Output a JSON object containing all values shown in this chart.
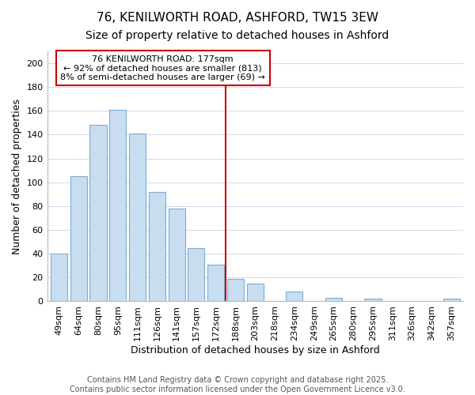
{
  "title": "76, KENILWORTH ROAD, ASHFORD, TW15 3EW",
  "subtitle": "Size of property relative to detached houses in Ashford",
  "xlabel": "Distribution of detached houses by size in Ashford",
  "ylabel": "Number of detached properties",
  "bar_labels": [
    "49sqm",
    "64sqm",
    "80sqm",
    "95sqm",
    "111sqm",
    "126sqm",
    "141sqm",
    "157sqm",
    "172sqm",
    "188sqm",
    "203sqm",
    "218sqm",
    "234sqm",
    "249sqm",
    "265sqm",
    "280sqm",
    "295sqm",
    "311sqm",
    "326sqm",
    "342sqm",
    "357sqm"
  ],
  "bar_values": [
    40,
    105,
    148,
    161,
    141,
    92,
    78,
    45,
    31,
    19,
    15,
    0,
    8,
    0,
    3,
    0,
    2,
    0,
    0,
    0,
    2
  ],
  "bar_color": "#c9ddf0",
  "bar_edge_color": "#7aaed6",
  "vline_x_index": 8,
  "vline_color": "#cc0000",
  "annotation_text": "76 KENILWORTH ROAD: 177sqm\n← 92% of detached houses are smaller (813)\n8% of semi-detached houses are larger (69) →",
  "annotation_box_color": "#ffffff",
  "annotation_box_edge": "#cc0000",
  "ylim": [
    0,
    210
  ],
  "yticks": [
    0,
    20,
    40,
    60,
    80,
    100,
    120,
    140,
    160,
    180,
    200
  ],
  "footer_text": "Contains HM Land Registry data © Crown copyright and database right 2025.\nContains public sector information licensed under the Open Government Licence v3.0.",
  "bg_color": "#ffffff",
  "grid_color": "#ccdaed",
  "title_fontsize": 11,
  "subtitle_fontsize": 10,
  "xlabel_fontsize": 9,
  "ylabel_fontsize": 9,
  "tick_fontsize": 8,
  "annotation_fontsize": 8,
  "footer_fontsize": 7
}
